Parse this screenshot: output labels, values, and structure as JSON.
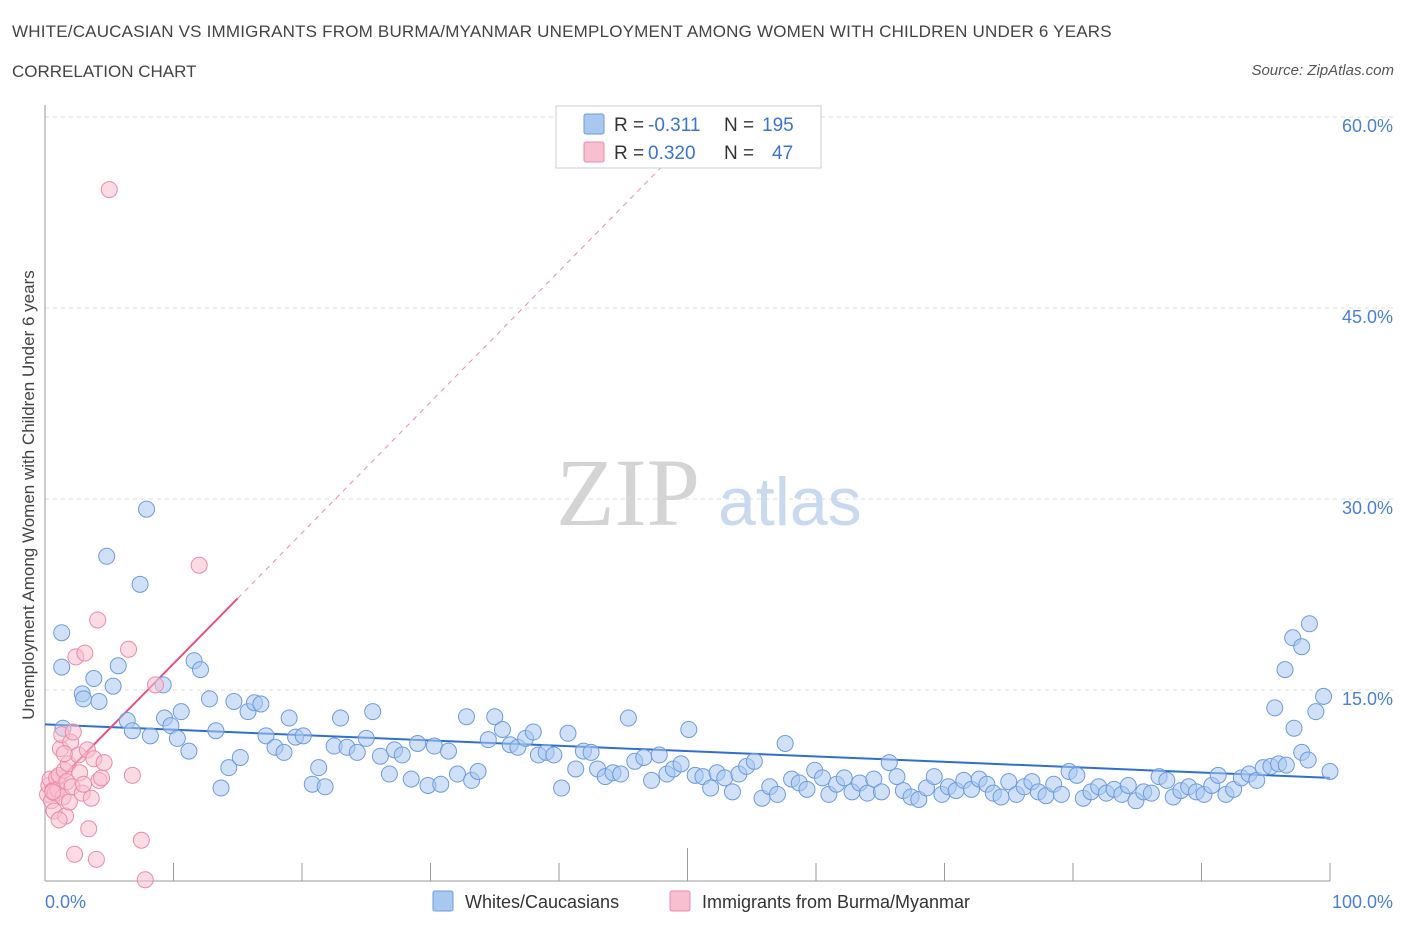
{
  "title": "WHITE/CAUCASIAN VS IMMIGRANTS FROM BURMA/MYANMAR UNEMPLOYMENT AMONG WOMEN WITH CHILDREN UNDER 6 YEARS",
  "subtitle": "CORRELATION CHART",
  "source": "Source: ZipAtlas.com",
  "watermark": {
    "zip": "ZIP",
    "atlas": "atlas"
  },
  "colors": {
    "blue": "#a9c8f0",
    "blue_stroke": "#6d9be0",
    "blue_line": "#2f6fd0",
    "pink": "#f7bfd0",
    "pink_stroke": "#ec8aa8",
    "pink_line": "#e8507e",
    "grid": "#dddddd"
  },
  "legend": {
    "r_label": "R =",
    "n_label": "N =",
    "rows": [
      {
        "r": "-0.311",
        "n": "195"
      },
      {
        "r": "0.320",
        "n": "47"
      }
    ]
  },
  "bottom_legend": [
    "Whites/Caucasians",
    "Immigrants from Burma/Myanmar"
  ],
  "chart_data": {
    "type": "scatter",
    "title": "WHITE/CAUCASIAN VS IMMIGRANTS FROM BURMA/MYANMAR UNEMPLOYMENT AMONG WOMEN WITH CHILDREN UNDER 6 YEARS",
    "xlabel": "",
    "ylabel": "Unemployment Among Women with Children Under 6 years",
    "xlim": [
      0,
      100
    ],
    "ylim": [
      0,
      60
    ],
    "y_ticks": [
      "15.0%",
      "30.0%",
      "45.0%",
      "60.0%"
    ],
    "y_tick_values": [
      15,
      30,
      45,
      60
    ],
    "x_tick_labels": [
      "0.0%",
      "100.0%"
    ],
    "series": [
      {
        "name": "Whites/Caucasians",
        "r": -0.311,
        "n": 195,
        "trend": {
          "x0": 0,
          "y0": 12.3,
          "x1": 100,
          "y1": 8.1
        },
        "points": [
          [
            1.3,
            19.5
          ],
          [
            1.4,
            12.0
          ],
          [
            1.3,
            16.8
          ],
          [
            2.9,
            14.7
          ],
          [
            3.0,
            14.3
          ],
          [
            3.8,
            15.9
          ],
          [
            4.2,
            14.1
          ],
          [
            4.8,
            25.5
          ],
          [
            5.3,
            15.3
          ],
          [
            5.7,
            16.9
          ],
          [
            6.4,
            12.6
          ],
          [
            6.8,
            11.8
          ],
          [
            7.4,
            23.3
          ],
          [
            7.9,
            29.2
          ],
          [
            8.2,
            11.4
          ],
          [
            9.2,
            15.4
          ],
          [
            9.3,
            12.8
          ],
          [
            9.8,
            12.2
          ],
          [
            10.3,
            11.2
          ],
          [
            10.6,
            13.3
          ],
          [
            11.2,
            10.2
          ],
          [
            11.6,
            17.3
          ],
          [
            12.1,
            16.6
          ],
          [
            12.8,
            14.3
          ],
          [
            13.3,
            11.8
          ],
          [
            13.7,
            7.3
          ],
          [
            14.3,
            8.9
          ],
          [
            14.7,
            14.1
          ],
          [
            15.2,
            9.7
          ],
          [
            15.8,
            13.3
          ],
          [
            16.3,
            14.0
          ],
          [
            16.8,
            13.9
          ],
          [
            17.2,
            11.4
          ],
          [
            17.9,
            10.5
          ],
          [
            18.6,
            10.1
          ],
          [
            19.0,
            12.8
          ],
          [
            19.5,
            11.3
          ],
          [
            20.1,
            11.4
          ],
          [
            20.8,
            7.6
          ],
          [
            21.3,
            8.9
          ],
          [
            21.8,
            7.4
          ],
          [
            22.5,
            10.6
          ],
          [
            23.0,
            12.8
          ],
          [
            23.5,
            10.5
          ],
          [
            24.3,
            10.1
          ],
          [
            25.0,
            11.2
          ],
          [
            25.5,
            13.3
          ],
          [
            26.1,
            9.8
          ],
          [
            26.8,
            8.4
          ],
          [
            27.2,
            10.3
          ],
          [
            27.8,
            9.9
          ],
          [
            28.5,
            8.0
          ],
          [
            29.0,
            10.8
          ],
          [
            29.8,
            7.5
          ],
          [
            30.3,
            10.6
          ],
          [
            30.8,
            7.6
          ],
          [
            31.4,
            10.2
          ],
          [
            32.1,
            8.4
          ],
          [
            32.8,
            12.9
          ],
          [
            33.2,
            7.9
          ],
          [
            33.7,
            8.6
          ],
          [
            34.5,
            11.1
          ],
          [
            35.0,
            12.9
          ],
          [
            35.6,
            11.9
          ],
          [
            36.2,
            10.7
          ],
          [
            36.8,
            10.5
          ],
          [
            37.4,
            11.2
          ],
          [
            38.0,
            11.7
          ],
          [
            38.4,
            9.9
          ],
          [
            39.0,
            10.1
          ],
          [
            39.6,
            9.9
          ],
          [
            40.2,
            7.3
          ],
          [
            40.7,
            11.6
          ],
          [
            41.3,
            8.8
          ],
          [
            41.9,
            10.2
          ],
          [
            42.5,
            10.1
          ],
          [
            43.0,
            8.8
          ],
          [
            43.6,
            8.2
          ],
          [
            44.2,
            8.5
          ],
          [
            44.8,
            8.4
          ],
          [
            45.4,
            12.8
          ],
          [
            45.9,
            9.4
          ],
          [
            46.6,
            9.7
          ],
          [
            47.2,
            7.9
          ],
          [
            47.8,
            9.9
          ],
          [
            48.4,
            8.4
          ],
          [
            48.9,
            8.8
          ],
          [
            49.5,
            9.2
          ],
          [
            50.1,
            11.9
          ],
          [
            50.6,
            8.3
          ],
          [
            51.2,
            8.2
          ],
          [
            51.8,
            7.3
          ],
          [
            52.3,
            8.5
          ],
          [
            52.9,
            8.1
          ],
          [
            53.5,
            7.0
          ],
          [
            54.0,
            8.4
          ],
          [
            54.6,
            9.0
          ],
          [
            55.2,
            9.4
          ],
          [
            55.8,
            6.5
          ],
          [
            56.4,
            7.4
          ],
          [
            57.0,
            6.8
          ],
          [
            57.6,
            10.8
          ],
          [
            58.1,
            8.0
          ],
          [
            58.7,
            7.7
          ],
          [
            59.3,
            7.2
          ],
          [
            59.9,
            8.7
          ],
          [
            60.5,
            8.1
          ],
          [
            61.0,
            6.8
          ],
          [
            61.6,
            7.6
          ],
          [
            62.2,
            8.1
          ],
          [
            62.8,
            7.0
          ],
          [
            63.4,
            7.7
          ],
          [
            64.0,
            6.9
          ],
          [
            64.5,
            8.0
          ],
          [
            65.1,
            7.0
          ],
          [
            65.7,
            9.3
          ],
          [
            66.3,
            8.2
          ],
          [
            66.8,
            7.1
          ],
          [
            67.4,
            6.6
          ],
          [
            68.0,
            6.4
          ],
          [
            68.6,
            7.3
          ],
          [
            69.2,
            8.2
          ],
          [
            69.8,
            6.8
          ],
          [
            70.3,
            7.4
          ],
          [
            70.9,
            7.1
          ],
          [
            71.5,
            7.9
          ],
          [
            72.1,
            7.2
          ],
          [
            72.7,
            8.0
          ],
          [
            73.3,
            7.6
          ],
          [
            73.8,
            6.9
          ],
          [
            74.4,
            6.6
          ],
          [
            75.0,
            7.8
          ],
          [
            75.6,
            6.8
          ],
          [
            76.2,
            7.4
          ],
          [
            76.8,
            7.8
          ],
          [
            77.3,
            7.0
          ],
          [
            77.9,
            6.7
          ],
          [
            78.5,
            7.6
          ],
          [
            79.1,
            6.8
          ],
          [
            79.7,
            8.6
          ],
          [
            80.3,
            8.3
          ],
          [
            80.8,
            6.5
          ],
          [
            81.4,
            7.0
          ],
          [
            82.0,
            7.4
          ],
          [
            82.6,
            6.9
          ],
          [
            83.2,
            7.2
          ],
          [
            83.8,
            6.8
          ],
          [
            84.3,
            7.5
          ],
          [
            84.9,
            6.3
          ],
          [
            85.5,
            7.0
          ],
          [
            86.1,
            6.9
          ],
          [
            86.7,
            8.2
          ],
          [
            87.3,
            7.9
          ],
          [
            87.8,
            6.6
          ],
          [
            88.4,
            7.1
          ],
          [
            89.0,
            7.4
          ],
          [
            89.6,
            7.0
          ],
          [
            90.2,
            6.8
          ],
          [
            90.8,
            7.5
          ],
          [
            91.3,
            8.3
          ],
          [
            91.9,
            6.8
          ],
          [
            92.5,
            7.2
          ],
          [
            93.1,
            8.1
          ],
          [
            93.7,
            8.4
          ],
          [
            94.3,
            7.9
          ],
          [
            94.8,
            8.9
          ],
          [
            95.4,
            9.0
          ],
          [
            96.0,
            9.2
          ],
          [
            96.6,
            9.1
          ],
          [
            97.2,
            12.0
          ],
          [
            97.8,
            10.1
          ],
          [
            98.3,
            9.5
          ],
          [
            98.9,
            13.3
          ],
          [
            99.5,
            14.5
          ],
          [
            100.0,
            8.6
          ],
          [
            95.7,
            13.6
          ],
          [
            96.5,
            16.6
          ],
          [
            97.1,
            19.1
          ],
          [
            97.8,
            18.4
          ],
          [
            98.4,
            20.2
          ]
        ]
      },
      {
        "name": "Immigrants from Burma/Myanmar",
        "r": 0.32,
        "n": 47,
        "trend": {
          "x0": 0,
          "y0": 6.8,
          "x1": 15,
          "y1": 22.2,
          "ext_x1": 48,
          "ext_y1": 56.1
        },
        "points": [
          [
            0.2,
            6.8
          ],
          [
            0.3,
            7.5
          ],
          [
            0.4,
            8.0
          ],
          [
            0.5,
            6.3
          ],
          [
            0.6,
            7.1
          ],
          [
            0.7,
            5.5
          ],
          [
            0.8,
            6.9
          ],
          [
            0.9,
            8.1
          ],
          [
            1.0,
            7.2
          ],
          [
            1.1,
            8.3
          ],
          [
            1.2,
            10.4
          ],
          [
            1.3,
            11.5
          ],
          [
            1.4,
            6.6
          ],
          [
            1.5,
            8.7
          ],
          [
            1.6,
            5.1
          ],
          [
            1.7,
            7.8
          ],
          [
            1.8,
            9.2
          ],
          [
            1.9,
            6.2
          ],
          [
            2.0,
            10.9
          ],
          [
            2.1,
            7.4
          ],
          [
            2.3,
            2.1
          ],
          [
            2.4,
            17.6
          ],
          [
            2.6,
            9.9
          ],
          [
            2.7,
            8.5
          ],
          [
            2.9,
            6.9
          ],
          [
            3.1,
            17.9
          ],
          [
            3.3,
            10.3
          ],
          [
            3.4,
            4.1
          ],
          [
            3.6,
            6.5
          ],
          [
            3.8,
            9.6
          ],
          [
            4.0,
            1.7
          ],
          [
            4.1,
            20.5
          ],
          [
            4.2,
            7.9
          ],
          [
            4.4,
            8.1
          ],
          [
            4.6,
            9.3
          ],
          [
            5.0,
            54.3
          ],
          [
            6.8,
            8.3
          ],
          [
            7.5,
            3.2
          ],
          [
            7.8,
            0.1
          ],
          [
            8.6,
            15.4
          ],
          [
            12.0,
            24.8
          ],
          [
            6.5,
            18.2
          ],
          [
            1.1,
            4.8
          ],
          [
            0.6,
            7.0
          ],
          [
            2.2,
            11.7
          ],
          [
            1.5,
            10.0
          ],
          [
            3.0,
            7.6
          ]
        ]
      }
    ]
  }
}
